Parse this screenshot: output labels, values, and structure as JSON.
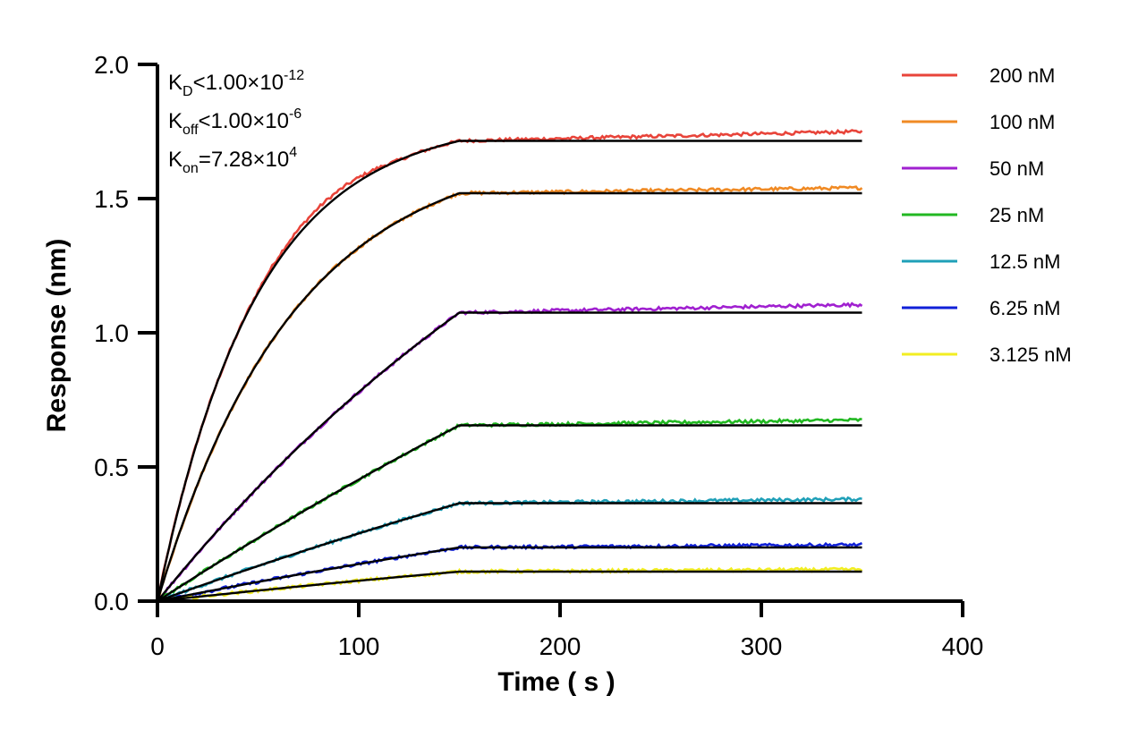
{
  "chart_data": {
    "type": "line",
    "title": "",
    "xlabel": "Time ( s )",
    "ylabel": "Response (nm)",
    "xlim": [
      0,
      400
    ],
    "ylim": [
      0,
      2.0
    ],
    "xticks": [
      0,
      100,
      200,
      300,
      400
    ],
    "xtick_labels": [
      "0",
      "100",
      "200",
      "300",
      "400"
    ],
    "yticks": [
      0,
      0.5,
      1.0,
      1.5,
      2.0
    ],
    "ytick_labels": [
      "0.0",
      "0.5",
      "1.0",
      "1.5",
      "2.0"
    ],
    "grid": false,
    "legend_position": "top-right",
    "association_end": 150,
    "data_end": 350,
    "annotations": [
      {
        "main": "K",
        "sub": "D",
        "rest": "<1.00×10",
        "sup": "-12"
      },
      {
        "main": "K",
        "sub": "off",
        "rest": "<1.00×10",
        "sup": "-6"
      },
      {
        "main": "K",
        "sub": "on",
        "rest": "=7.28×10",
        "sup": "4"
      }
    ],
    "series": [
      {
        "name": "200 nM",
        "color": "#e8443a",
        "fit_plateau": 1.715,
        "observed_end": 1.75,
        "k_obs": 0.0203
      },
      {
        "name": "100 nM",
        "color": "#f08a24",
        "fit_plateau": 1.52,
        "observed_end": 1.54,
        "k_obs": 0.0148
      },
      {
        "name": "50 nM",
        "color": "#a020d0",
        "fit_plateau": 1.075,
        "observed_end": 1.105,
        "k_obs": 0.0036
      },
      {
        "name": "25 nM",
        "color": "#22b822",
        "fit_plateau": 0.655,
        "observed_end": 0.675,
        "k_obs": 0.0015
      },
      {
        "name": "12.5 nM",
        "color": "#1fa0b8",
        "fit_plateau": 0.365,
        "observed_end": 0.38,
        "k_obs": 0.0015
      },
      {
        "name": "6.25 nM",
        "color": "#1020d8",
        "fit_plateau": 0.2,
        "observed_end": 0.21,
        "k_obs": 0.0015
      },
      {
        "name": "3.125 nM",
        "color": "#f2ee22",
        "fit_plateau": 0.11,
        "observed_end": 0.118,
        "k_obs": 0.0015
      }
    ],
    "fit_color": "#000000"
  }
}
